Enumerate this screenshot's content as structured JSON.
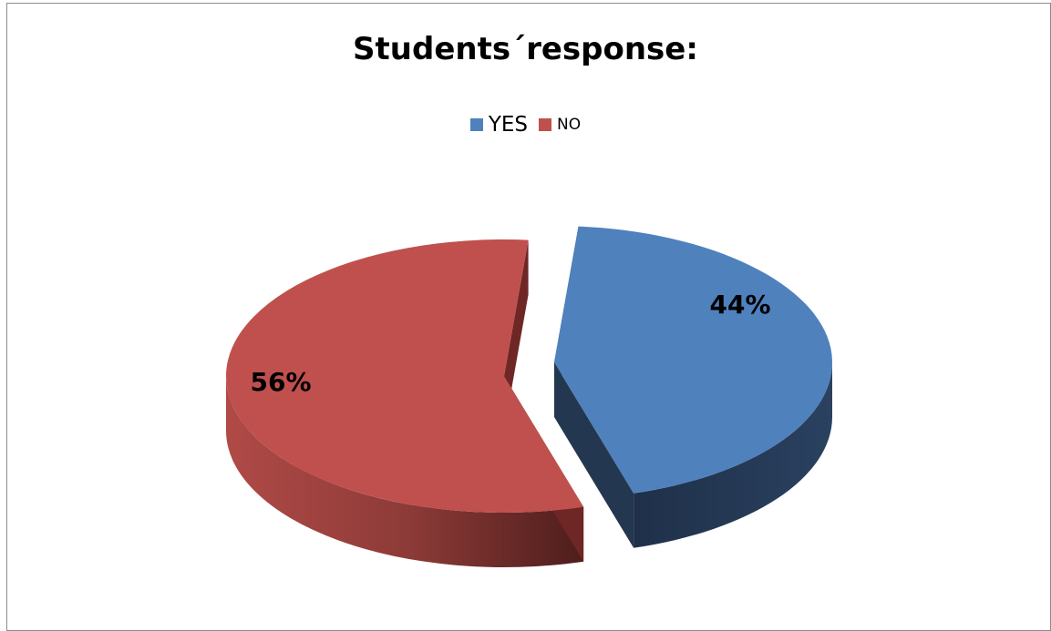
{
  "chart_data": {
    "type": "pie",
    "title": "Students´response:",
    "legend_position": "top",
    "slices": [
      {
        "name": "YES",
        "value": 44,
        "label": "44%",
        "color": "#4F81BD",
        "side_color": "#243750"
      },
      {
        "name": "NO",
        "value": 56,
        "label": "56%",
        "color": "#C0504D",
        "side_color": "#6e2725"
      }
    ],
    "style": "3d-exploded"
  }
}
